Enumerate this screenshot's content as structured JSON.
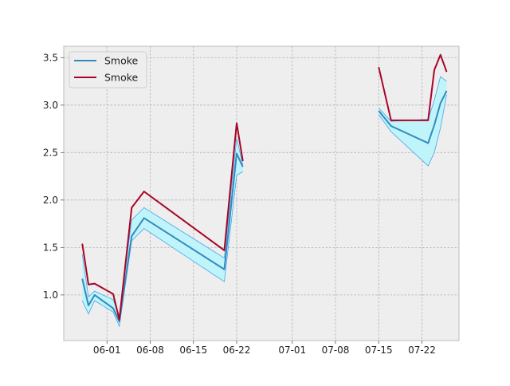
{
  "chart_data": {
    "type": "line",
    "title": "",
    "xlabel": "",
    "ylabel": "",
    "x_tick_labels": [
      "06-01",
      "06-08",
      "06-15",
      "06-22",
      "07-01",
      "07-08",
      "07-15",
      "07-22"
    ],
    "y_tick_labels": [
      "1.0",
      "1.5",
      "2.0",
      "2.5",
      "3.0",
      "3.5"
    ],
    "xlim": [
      "2024-05-25",
      "2024-07-28"
    ],
    "ylim": [
      0.52,
      3.62
    ],
    "grid": true,
    "legend_position": "upper left",
    "colors": {
      "background": "#eeeeee",
      "series_blue": "#348abd",
      "series_red": "#a60628",
      "band_fill": "#bff5fa",
      "band_edge": "#4aa3e8",
      "grid": "#b0b0b0",
      "frame": "#bcbcbc"
    },
    "series": [
      {
        "name": "Smoke",
        "color": "#348abd",
        "segments": [
          {
            "x": [
              "2024-05-28",
              "2024-05-29",
              "2024-05-30",
              "2024-06-02",
              "2024-06-03",
              "2024-06-05",
              "2024-06-07",
              "2024-06-20",
              "2024-06-22",
              "2024-06-23"
            ],
            "y": [
              1.17,
              0.89,
              1.0,
              0.86,
              0.72,
              1.62,
              1.81,
              1.27,
              2.49,
              2.35
            ]
          },
          {
            "x": [
              "2024-07-15",
              "2024-07-17",
              "2024-07-23",
              "2024-07-24",
              "2024-07-25",
              "2024-07-26"
            ],
            "y": [
              2.94,
              2.78,
              2.6,
              2.79,
              3.02,
              3.15
            ]
          }
        ]
      },
      {
        "name": "Smoke",
        "color": "#a60628",
        "segments": [
          {
            "x": [
              "2024-05-28",
              "2024-05-29",
              "2024-05-30",
              "2024-06-02",
              "2024-06-03",
              "2024-06-05",
              "2024-06-07",
              "2024-06-20",
              "2024-06-22",
              "2024-06-23"
            ],
            "y": [
              1.54,
              1.11,
              1.12,
              1.01,
              0.74,
              1.92,
              2.09,
              1.47,
              2.81,
              2.41
            ]
          },
          {
            "x": [
              "2024-07-15",
              "2024-07-17",
              "2024-07-23",
              "2024-07-24",
              "2024-07-25",
              "2024-07-26"
            ],
            "y": [
              3.4,
              2.84,
              2.84,
              3.37,
              3.53,
              3.35
            ]
          }
        ]
      }
    ],
    "band": {
      "segments": [
        {
          "x": [
            "2024-05-28",
            "2024-05-29",
            "2024-05-30",
            "2024-06-02",
            "2024-06-03",
            "2024-06-05",
            "2024-06-07",
            "2024-06-20",
            "2024-06-22",
            "2024-06-23"
          ],
          "lower": [
            0.94,
            0.8,
            0.94,
            0.82,
            0.67,
            1.57,
            1.7,
            1.14,
            2.26,
            2.3
          ],
          "upper": [
            1.43,
            0.98,
            1.04,
            0.95,
            0.78,
            1.79,
            1.92,
            1.39,
            2.65,
            2.37
          ]
        },
        {
          "x": [
            "2024-07-15",
            "2024-07-17",
            "2024-07-23",
            "2024-07-24",
            "2024-07-25",
            "2024-07-26"
          ],
          "lower": [
            2.9,
            2.72,
            2.36,
            2.5,
            2.76,
            3.11
          ],
          "upper": [
            2.97,
            2.83,
            2.85,
            3.05,
            3.3,
            3.25
          ]
        }
      ]
    },
    "legend": [
      "Smoke",
      "Smoke"
    ]
  }
}
